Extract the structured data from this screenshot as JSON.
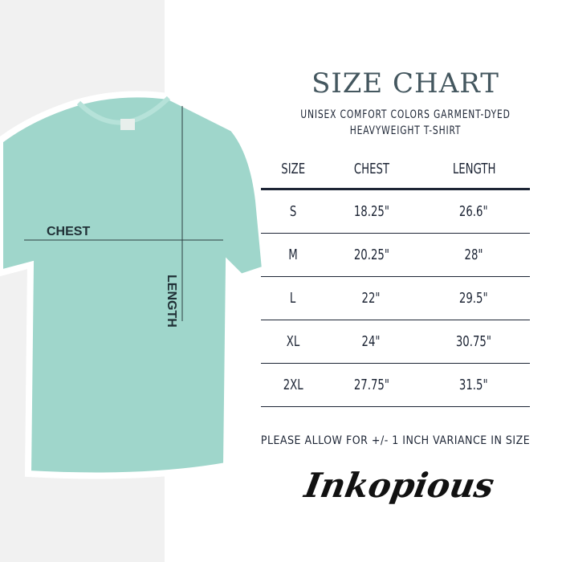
{
  "title": "SIZE CHART",
  "subtitle_line1": "UNISEX COMFORT COLORS GARMENT-DYED",
  "subtitle_line2": "HEAVYWEIGHT T-SHIRT",
  "shirt_labels": {
    "chest": "CHEST",
    "length": "LENGTH"
  },
  "table": {
    "headers": [
      "SIZE",
      "CHEST",
      "LENGTH"
    ],
    "rows": [
      [
        "S",
        "18.25\"",
        "26.6\""
      ],
      [
        "M",
        "20.25\"",
        "28\""
      ],
      [
        "L",
        "22\"",
        "29.5\""
      ],
      [
        "XL",
        "24\"",
        "30.75\""
      ],
      [
        "2XL",
        "27.75\"",
        "31.5\""
      ]
    ]
  },
  "note": "PLEASE ALLOW FOR +/- 1 INCH VARIANCE IN SIZE",
  "brand": "Inkopious",
  "colors": {
    "shirt": "#9fd6cb",
    "text": "#1d2535",
    "title": "#44575f"
  }
}
